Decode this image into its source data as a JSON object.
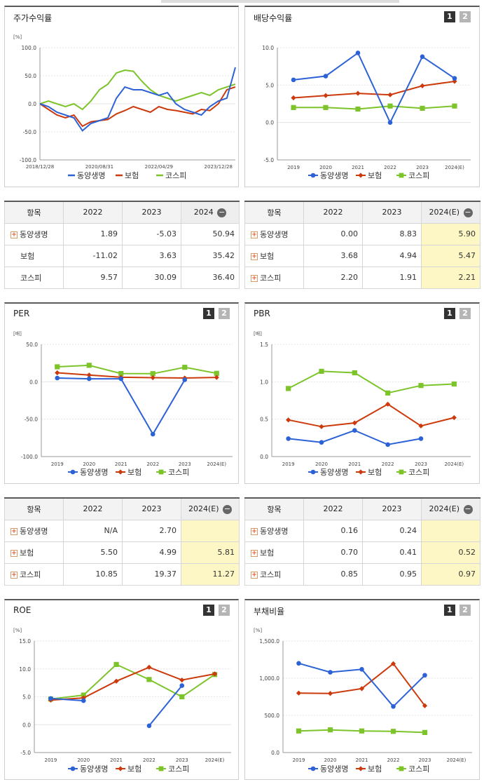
{
  "buttons": {
    "one": "1",
    "two": "2"
  },
  "legend_series": [
    "동양생명",
    "보험",
    "코스피"
  ],
  "colors": {
    "동양생명": "#2d62d6",
    "보험": "#cc3a0c",
    "코스피": "#7cc42a"
  },
  "panels": {
    "stock": {
      "title": "주가수익률"
    },
    "dividend": {
      "title": "배당수익률"
    },
    "per": {
      "title": "PER"
    },
    "pbr": {
      "title": "PBR"
    },
    "roe": {
      "title": "ROE"
    },
    "debt": {
      "title": "부채비율"
    }
  },
  "tables": {
    "stock": {
      "headers": [
        "항목",
        "2022",
        "2023",
        "2024"
      ],
      "rows": [
        {
          "name": "동양생명",
          "plus": true,
          "values": [
            "1.89",
            "-5.03",
            "50.94"
          ]
        },
        {
          "name": "보험",
          "plus": false,
          "values": [
            "-11.02",
            "3.63",
            "35.42"
          ]
        },
        {
          "name": "코스피",
          "plus": false,
          "values": [
            "9.57",
            "30.09",
            "36.40"
          ]
        }
      ]
    },
    "dividend": {
      "headers": [
        "항목",
        "2022",
        "2023",
        "2024(E)"
      ],
      "rows": [
        {
          "name": "동양생명",
          "plus": true,
          "values": [
            "0.00",
            "8.83",
            "5.90"
          ]
        },
        {
          "name": "보험",
          "plus": true,
          "values": [
            "3.68",
            "4.94",
            "5.47"
          ]
        },
        {
          "name": "코스피",
          "plus": true,
          "values": [
            "2.20",
            "1.91",
            "2.21"
          ]
        }
      ]
    },
    "per": {
      "headers": [
        "항목",
        "2022",
        "2023",
        "2024(E)"
      ],
      "rows": [
        {
          "name": "동양생명",
          "plus": true,
          "values": [
            "N/A",
            "2.70",
            ""
          ]
        },
        {
          "name": "보험",
          "plus": true,
          "values": [
            "5.50",
            "4.99",
            "5.81"
          ]
        },
        {
          "name": "코스피",
          "plus": true,
          "values": [
            "10.85",
            "19.37",
            "11.27"
          ]
        }
      ]
    },
    "pbr": {
      "headers": [
        "항목",
        "2022",
        "2023",
        "2024(E)"
      ],
      "rows": [
        {
          "name": "동양생명",
          "plus": true,
          "values": [
            "0.16",
            "0.24",
            ""
          ]
        },
        {
          "name": "보험",
          "plus": true,
          "values": [
            "0.70",
            "0.41",
            "0.52"
          ]
        },
        {
          "name": "코스피",
          "plus": true,
          "values": [
            "0.85",
            "0.95",
            "0.97"
          ]
        }
      ]
    }
  },
  "chart_data": [
    {
      "id": "stock",
      "type": "line",
      "unit": "[%]",
      "ylim": [
        -100,
        100
      ],
      "yticks": [
        "100.0",
        "50.0",
        "0.0",
        "-50.0",
        "-100.0"
      ],
      "xticks": [
        "2018/12/28",
        "2020/08/31",
        "2022/04/29",
        "2023/12/28"
      ],
      "x": [
        "2018-12-28",
        "2019-03",
        "2019-06",
        "2019-09",
        "2019-12",
        "2020-03",
        "2020-06",
        "2020-08-31",
        "2020-11",
        "2021-02",
        "2021-05",
        "2021-08",
        "2021-11",
        "2022-02",
        "2022-04-29",
        "2022-07",
        "2022-10",
        "2023-01",
        "2023-04",
        "2023-07",
        "2023-10",
        "2023-12-28",
        "2024-03",
        "2024-06"
      ],
      "series": [
        {
          "name": "동양생명",
          "values": [
            0,
            -5,
            -15,
            -20,
            -25,
            -48,
            -35,
            -30,
            -25,
            10,
            30,
            25,
            25,
            20,
            15,
            20,
            0,
            -10,
            -15,
            -20,
            -5,
            5,
            10,
            65
          ]
        },
        {
          "name": "보험",
          "values": [
            0,
            -10,
            -20,
            -25,
            -20,
            -40,
            -32,
            -30,
            -28,
            -18,
            -12,
            -5,
            -10,
            -15,
            -5,
            -10,
            -12,
            -15,
            -18,
            -10,
            -12,
            0,
            25,
            30
          ]
        },
        {
          "name": "코스피",
          "values": [
            0,
            5,
            0,
            -5,
            0,
            -10,
            5,
            25,
            35,
            55,
            60,
            58,
            40,
            25,
            15,
            10,
            5,
            10,
            15,
            20,
            15,
            25,
            30,
            35
          ]
        }
      ]
    },
    {
      "id": "dividend",
      "type": "line",
      "unit": "",
      "ylim": [
        -5,
        10
      ],
      "yticks": [
        "10.0",
        "5.0",
        "0.0",
        "-5.0"
      ],
      "categories": [
        "2019",
        "2020",
        "2021",
        "2022",
        "2023",
        "2024(E)"
      ],
      "series": [
        {
          "name": "동양생명",
          "values": [
            5.7,
            6.2,
            9.3,
            0.0,
            8.8,
            5.9
          ]
        },
        {
          "name": "보험",
          "values": [
            3.3,
            3.6,
            3.9,
            3.7,
            4.9,
            5.5
          ]
        },
        {
          "name": "코스피",
          "values": [
            2.0,
            2.0,
            1.8,
            2.2,
            1.9,
            2.2
          ]
        }
      ]
    },
    {
      "id": "per",
      "type": "line",
      "unit": "[배]",
      "ylim": [
        -100,
        50
      ],
      "yticks": [
        "50.0",
        "0.0",
        "-50.0",
        "-100.0"
      ],
      "categories": [
        "2019",
        "2020",
        "2021",
        "2022",
        "2023",
        "2024(E)"
      ],
      "series": [
        {
          "name": "동양생명",
          "values": [
            5,
            4,
            4,
            -70,
            2.7,
            null
          ]
        },
        {
          "name": "보험",
          "values": [
            12,
            9,
            6,
            5.5,
            4.99,
            5.81
          ]
        },
        {
          "name": "코스피",
          "values": [
            20,
            22,
            11,
            10.85,
            19.37,
            11.27
          ]
        }
      ]
    },
    {
      "id": "pbr",
      "type": "line",
      "unit": "[배]",
      "ylim": [
        0,
        1.5
      ],
      "yticks": [
        "1.5",
        "1.0",
        "0.5",
        "0.0"
      ],
      "categories": [
        "2019",
        "2020",
        "2021",
        "2022",
        "2023",
        "2024(E)"
      ],
      "series": [
        {
          "name": "동양생명",
          "values": [
            0.24,
            0.19,
            0.35,
            0.16,
            0.24,
            null
          ]
        },
        {
          "name": "보험",
          "values": [
            0.49,
            0.4,
            0.45,
            0.7,
            0.41,
            0.52
          ]
        },
        {
          "name": "코스피",
          "values": [
            0.91,
            1.14,
            1.12,
            0.85,
            0.95,
            0.97
          ]
        }
      ]
    },
    {
      "id": "roe",
      "type": "line",
      "unit": "[%]",
      "ylim": [
        -5,
        15
      ],
      "yticks": [
        "15.0",
        "10.0",
        "5.0",
        "0.0",
        "-5.0"
      ],
      "categories": [
        "2019",
        "2020",
        "2021",
        "2022",
        "2023",
        "2024(E)"
      ],
      "series": [
        {
          "name": "동양생명",
          "values": [
            4.7,
            4.3,
            null,
            -0.2,
            7.0,
            null
          ]
        },
        {
          "name": "보험",
          "values": [
            4.4,
            4.8,
            7.8,
            10.3,
            8.0,
            9.1
          ]
        },
        {
          "name": "코스피",
          "values": [
            4.6,
            5.3,
            10.8,
            8.1,
            5.0,
            9.0
          ]
        }
      ]
    },
    {
      "id": "debt",
      "type": "line",
      "unit": "[%]",
      "ylim": [
        0,
        1500
      ],
      "yticks": [
        "1,500.0",
        "1,000.0",
        "500.0",
        "0.0"
      ],
      "categories": [
        "2019",
        "2020",
        "2021",
        "2022",
        "2023",
        "2024(E)"
      ],
      "series": [
        {
          "name": "동양생명",
          "values": [
            1200,
            1080,
            1120,
            620,
            1040,
            null
          ]
        },
        {
          "name": "보험",
          "values": [
            800,
            795,
            860,
            1195,
            630,
            null
          ]
        },
        {
          "name": "코스피",
          "values": [
            290,
            305,
            290,
            285,
            270,
            null
          ]
        }
      ]
    }
  ]
}
